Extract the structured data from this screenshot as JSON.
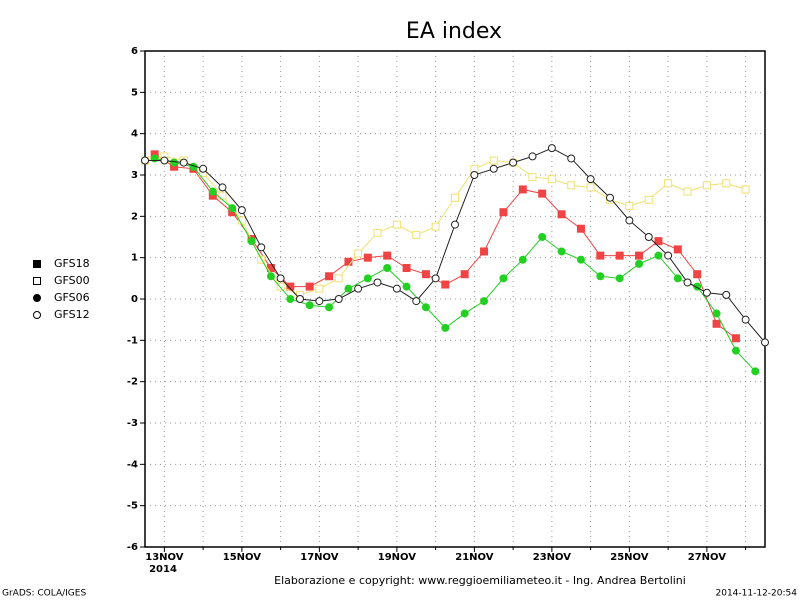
{
  "chart_data": {
    "type": "line",
    "title": "EA index",
    "xlim": [
      12.5,
      28.5
    ],
    "xticks": [
      {
        "value": 13,
        "label": "13NOV"
      },
      {
        "value": 15,
        "label": "15NOV"
      },
      {
        "value": 17,
        "label": "17NOV"
      },
      {
        "value": 19,
        "label": "19NOV"
      },
      {
        "value": 21,
        "label": "21NOV"
      },
      {
        "value": 23,
        "label": "23NOV"
      },
      {
        "value": 25,
        "label": "25NOV"
      },
      {
        "value": 27,
        "label": "27NOV"
      }
    ],
    "xminor_ticks": [
      14,
      16,
      18,
      20,
      22,
      24,
      26,
      28
    ],
    "year_label": "2014",
    "ylim": [
      -6,
      6
    ],
    "yticks": [
      -6,
      -5,
      -4,
      -3,
      -2,
      -1,
      0,
      1,
      2,
      3,
      4,
      5,
      6
    ],
    "grid": true,
    "series": [
      {
        "name": "GFS18",
        "color": "#f04444",
        "marker": "filled-square",
        "x": [
          12.75,
          13.25,
          13.75,
          14.25,
          14.75,
          15.25,
          15.75,
          16.25,
          16.75,
          17.25,
          17.75,
          18.25,
          18.75,
          19.25,
          19.75,
          20.25,
          20.75,
          21.25,
          21.75,
          22.25,
          22.75,
          23.25,
          23.75,
          24.25,
          24.75,
          25.25,
          25.75,
          26.25,
          26.75,
          27.25,
          27.75
        ],
        "values": [
          3.5,
          3.2,
          3.15,
          2.5,
          2.1,
          1.45,
          0.75,
          0.3,
          0.3,
          0.55,
          0.9,
          1.0,
          1.05,
          0.75,
          0.6,
          0.35,
          0.6,
          1.15,
          2.1,
          2.65,
          2.55,
          2.05,
          1.7,
          1.05,
          1.05,
          1.05,
          1.4,
          1.2,
          0.6,
          -0.6,
          -0.95
        ]
      },
      {
        "name": "GFS00",
        "color": "#f0e070",
        "marker": "open-square",
        "x": [
          12.5,
          13.0,
          13.5,
          14.0,
          14.5,
          15.0,
          15.5,
          16.0,
          16.5,
          17.0,
          17.5,
          18.0,
          18.5,
          19.0,
          19.5,
          20.0,
          20.5,
          21.0,
          21.5,
          22.0,
          22.5,
          23.0,
          23.5,
          24.0,
          24.5,
          25.0,
          25.5,
          26.0,
          26.5,
          27.0,
          27.5,
          28.0
        ],
        "values": [
          3.35,
          3.45,
          3.35,
          3.05,
          2.5,
          1.9,
          0.95,
          0.3,
          0.1,
          0.25,
          0.5,
          1.1,
          1.6,
          1.8,
          1.55,
          1.75,
          2.45,
          3.15,
          3.35,
          3.3,
          2.95,
          2.9,
          2.75,
          2.7,
          2.4,
          2.25,
          2.4,
          2.8,
          2.6,
          2.75,
          2.8,
          2.65
        ]
      },
      {
        "name": "GFS06",
        "color": "#22d022",
        "marker": "filled-circle",
        "x": [
          12.75,
          13.25,
          13.75,
          14.25,
          14.75,
          15.25,
          15.75,
          16.25,
          16.75,
          17.25,
          17.75,
          18.25,
          18.75,
          19.25,
          19.75,
          20.25,
          20.75,
          21.25,
          21.75,
          22.25,
          22.75,
          23.25,
          23.75,
          24.25,
          24.75,
          25.25,
          25.75,
          26.25,
          26.75,
          27.25,
          27.75,
          28.25
        ],
        "values": [
          3.4,
          3.3,
          3.2,
          2.6,
          2.2,
          1.4,
          0.55,
          0.0,
          -0.15,
          -0.2,
          0.25,
          0.5,
          0.75,
          0.3,
          -0.2,
          -0.7,
          -0.35,
          -0.05,
          0.5,
          0.95,
          1.5,
          1.15,
          0.95,
          0.55,
          0.5,
          0.85,
          1.05,
          0.5,
          0.3,
          -0.35,
          -1.25,
          -1.75
        ]
      },
      {
        "name": "GFS12",
        "color": "#222222",
        "marker": "open-circle",
        "x": [
          12.5,
          13.0,
          13.5,
          14.0,
          14.5,
          15.0,
          15.5,
          16.0,
          16.5,
          17.0,
          17.5,
          18.0,
          18.5,
          19.0,
          19.5,
          20.0,
          20.5,
          21.0,
          21.5,
          22.0,
          22.5,
          23.0,
          23.5,
          24.0,
          24.5,
          25.0,
          25.5,
          26.0,
          26.5,
          27.0,
          27.5,
          28.0,
          28.5
        ],
        "values": [
          3.35,
          3.35,
          3.3,
          3.15,
          2.7,
          2.15,
          1.25,
          0.5,
          0.0,
          -0.05,
          0.0,
          0.25,
          0.4,
          0.25,
          -0.05,
          0.5,
          1.8,
          3.0,
          3.15,
          3.3,
          3.45,
          3.65,
          3.4,
          2.9,
          2.45,
          1.9,
          1.5,
          1.05,
          0.4,
          0.15,
          0.1,
          -0.5,
          -1.05
        ]
      }
    ],
    "credit": "Elaborazione e copyright: www.reggioemiliameteo.it - Ing. Andrea Bertolini",
    "software": "GrADS: COLA/IGES",
    "timestamp": "2014-11-12-20:54"
  }
}
